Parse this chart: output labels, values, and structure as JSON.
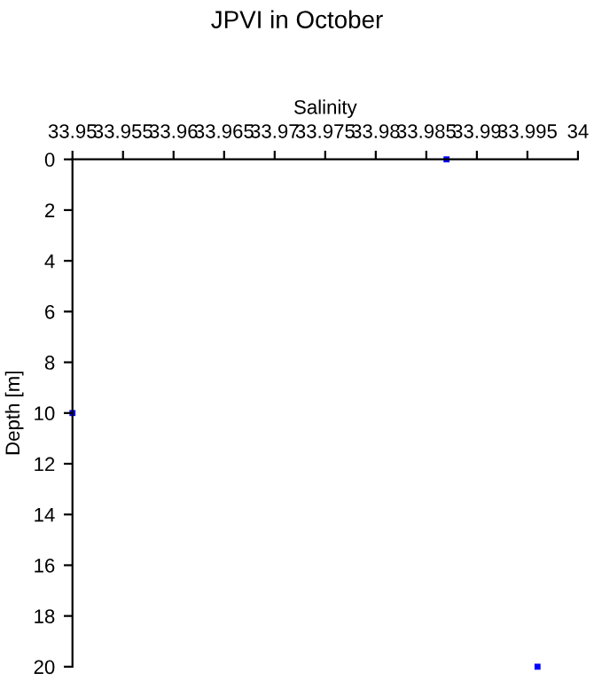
{
  "chart_data": {
    "type": "scatter",
    "title": "JPVI in October",
    "xlabel": "Salinity",
    "ylabel": "Depth [m]",
    "x": [
      33.987,
      33.95,
      33.996
    ],
    "series": [
      {
        "color": "#0000ff",
        "values": [
          0,
          10,
          20
        ]
      }
    ],
    "marker": "square",
    "xlim": [
      33.95,
      34
    ],
    "xticks": [
      33.95,
      33.955,
      33.96,
      33.965,
      33.97,
      33.975,
      33.98,
      33.985,
      33.99,
      33.995,
      34
    ],
    "ylim": [
      20,
      0
    ],
    "yticks": [
      0,
      2,
      4,
      6,
      8,
      10,
      12,
      14,
      16,
      18,
      20
    ],
    "grid": false,
    "legend": false
  }
}
